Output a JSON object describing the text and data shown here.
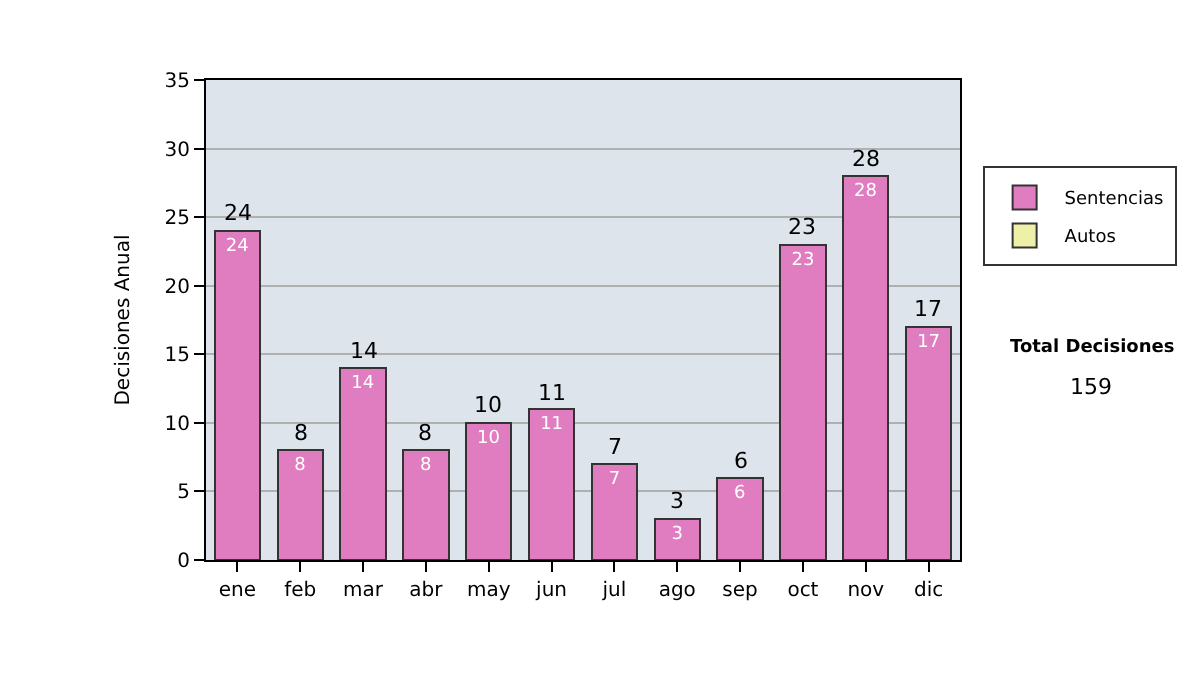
{
  "chart_data": {
    "type": "bar",
    "ylabel": "Decisiones Anual",
    "categories": [
      "ene",
      "feb",
      "mar",
      "abr",
      "may",
      "jun",
      "jul",
      "ago",
      "sep",
      "oct",
      "nov",
      "dic"
    ],
    "series": [
      {
        "name": "Sentencias",
        "color": "#e07cc0",
        "values": [
          24,
          8,
          14,
          8,
          10,
          11,
          7,
          3,
          6,
          23,
          28,
          17
        ]
      },
      {
        "name": "Autos",
        "color": "#eef0a8",
        "values": [
          null,
          null,
          null,
          null,
          null,
          null,
          null,
          null,
          null,
          null,
          null,
          null
        ]
      }
    ],
    "stacked": true,
    "data_labels": true,
    "totals": [
      "24",
      "8",
      "14",
      "8",
      "10",
      "11",
      "7",
      "3",
      "6",
      "23",
      "28",
      "17"
    ],
    "ylim": [
      0,
      35
    ],
    "yticks": [
      0,
      5,
      10,
      15,
      20,
      25,
      30,
      35
    ],
    "grid": "y",
    "legend": "right",
    "annotations": [
      "Total Decisiones",
      "159"
    ]
  }
}
